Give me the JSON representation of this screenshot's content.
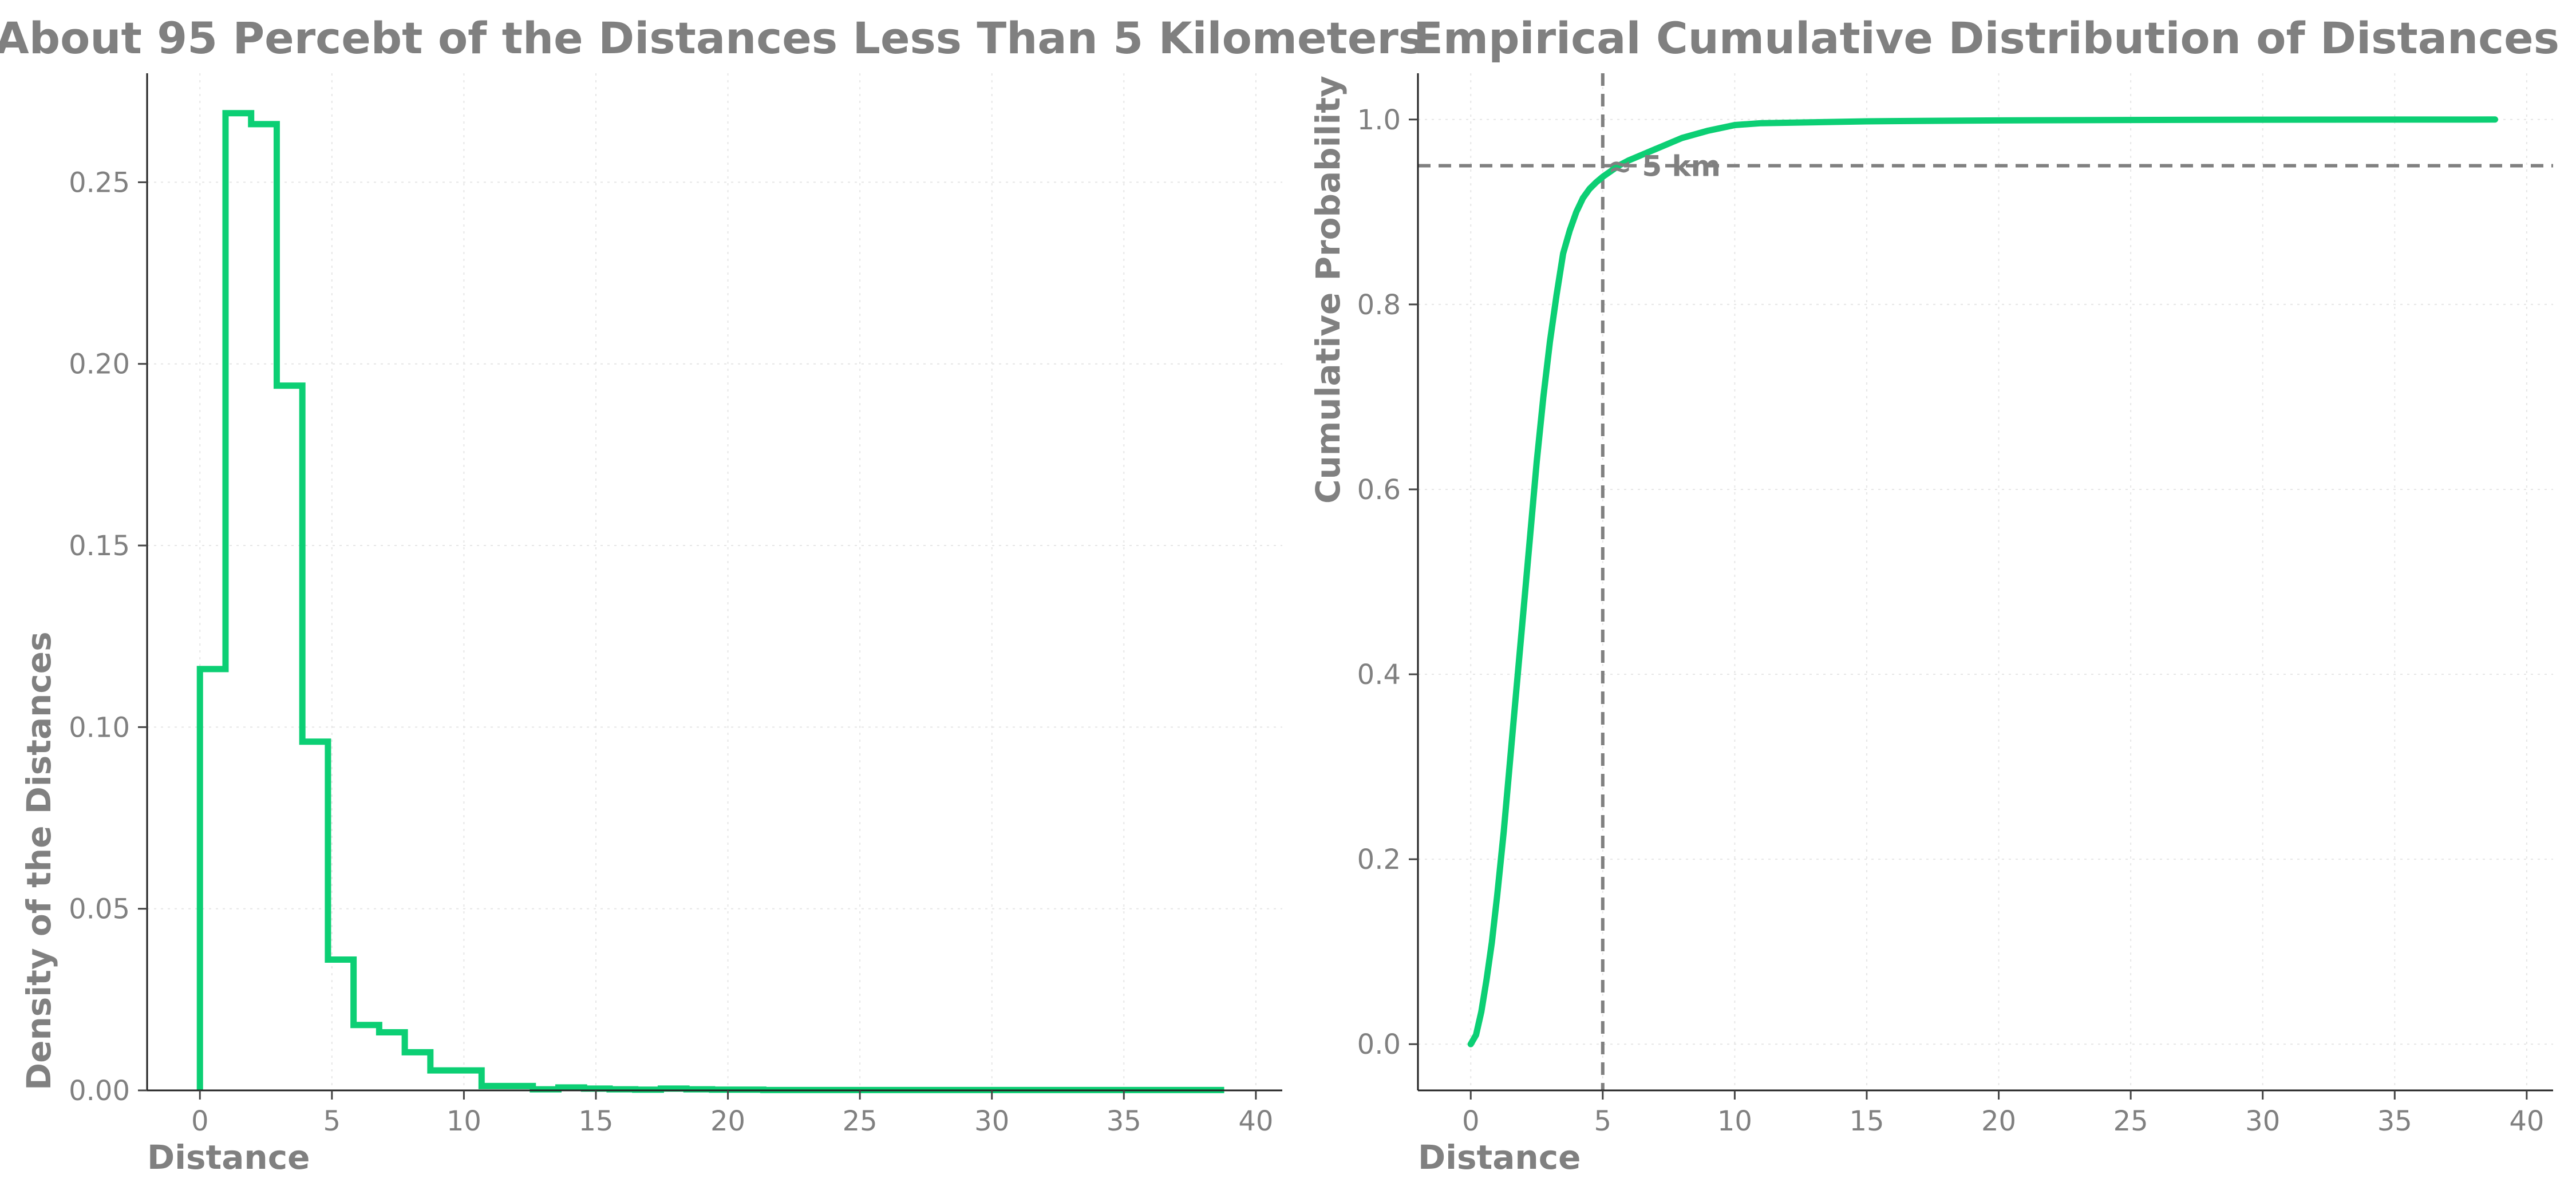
{
  "chart_data": [
    {
      "type": "histogram-step",
      "title": "About 95 Percebt of the Distances Less Than 5 Kilometers",
      "xlabel": "Distance",
      "ylabel": "Density of the Distances",
      "xlim": [
        -2,
        41
      ],
      "ylim": [
        0,
        0.28
      ],
      "xticks": [
        0,
        5,
        10,
        15,
        20,
        25,
        30,
        35,
        40
      ],
      "yticks": [
        0.0,
        0.05,
        0.1,
        0.15,
        0.2,
        0.25
      ],
      "xtick_labels": [
        "0",
        "5",
        "10",
        "15",
        "20",
        "25",
        "30",
        "35",
        "40"
      ],
      "ytick_labels": [
        "0.00",
        "0.05",
        "0.10",
        "0.15",
        "0.20",
        "0.25"
      ],
      "grid": true,
      "color": "#0ccf74",
      "bin_edges": [
        0,
        0.97,
        1.94,
        2.91,
        3.88,
        4.85,
        5.82,
        6.79,
        7.76,
        8.73,
        9.7,
        10.67,
        11.64,
        12.61,
        13.58,
        14.55,
        15.52,
        16.49,
        17.46,
        18.43,
        19.4,
        20.37,
        21.34,
        22.31,
        23.28,
        24.25,
        25.22,
        26.19,
        27.16,
        28.13,
        29.1,
        30.07,
        31.04,
        32.01,
        32.98,
        33.95,
        34.92,
        35.89,
        36.86,
        37.83,
        38.8
      ],
      "densities": [
        0.116,
        0.269,
        0.266,
        0.194,
        0.096,
        0.036,
        0.018,
        0.016,
        0.0105,
        0.0055,
        0.0055,
        0.0012,
        0.0012,
        0.0003,
        0.0008,
        0.0005,
        0.0003,
        0.0002,
        0.0005,
        0.0003,
        0.0002,
        0.0002,
        0.0001,
        0.0001,
        0.0001,
        0.0001,
        0.0001,
        0.0001,
        0.0001,
        0.0001,
        0.0001,
        0.0001,
        0.0001,
        0.0001,
        0.0001,
        0.0001,
        0.0001,
        0.0001,
        0.0001,
        0.0001
      ]
    },
    {
      "type": "line",
      "title": "Empirical Cumulative Distribution of Distances",
      "xlabel": "Distance",
      "ylabel": "Cumulative Probability",
      "xlim": [
        -2,
        41
      ],
      "ylim": [
        -0.05,
        1.05
      ],
      "xticks": [
        0,
        5,
        10,
        15,
        20,
        25,
        30,
        35,
        40
      ],
      "yticks": [
        0.0,
        0.2,
        0.4,
        0.6,
        0.8,
        1.0
      ],
      "xtick_labels": [
        "0",
        "5",
        "10",
        "15",
        "20",
        "25",
        "30",
        "35",
        "40"
      ],
      "ytick_labels": [
        "0.0",
        "0.2",
        "0.4",
        "0.6",
        "0.8",
        "1.0"
      ],
      "grid": true,
      "color": "#0ccf74",
      "x": [
        0,
        0.2,
        0.4,
        0.6,
        0.8,
        1.0,
        1.25,
        1.5,
        1.75,
        2.0,
        2.25,
        2.5,
        2.75,
        3.0,
        3.25,
        3.5,
        3.75,
        4.0,
        4.25,
        4.5,
        4.75,
        5.0,
        5.3,
        5.6,
        6.0,
        6.5,
        7.0,
        7.5,
        8.0,
        9.0,
        10.0,
        11.0,
        13.0,
        15.0,
        17.0,
        20.0,
        25.0,
        30.0,
        35.0,
        38.8
      ],
      "y": [
        0.0,
        0.01,
        0.035,
        0.07,
        0.11,
        0.16,
        0.23,
        0.31,
        0.39,
        0.47,
        0.55,
        0.63,
        0.7,
        0.76,
        0.81,
        0.855,
        0.88,
        0.9,
        0.915,
        0.925,
        0.932,
        0.938,
        0.944,
        0.95,
        0.956,
        0.962,
        0.968,
        0.974,
        0.98,
        0.988,
        0.994,
        0.996,
        0.997,
        0.998,
        0.9985,
        0.999,
        0.9995,
        0.9998,
        0.9999,
        1.0
      ],
      "reference_lines": {
        "horizontal": 0.95,
        "vertical": 5
      },
      "annotation": {
        "text": "≈ 5 km",
        "x": 5.2,
        "y": 0.95
      }
    }
  ]
}
